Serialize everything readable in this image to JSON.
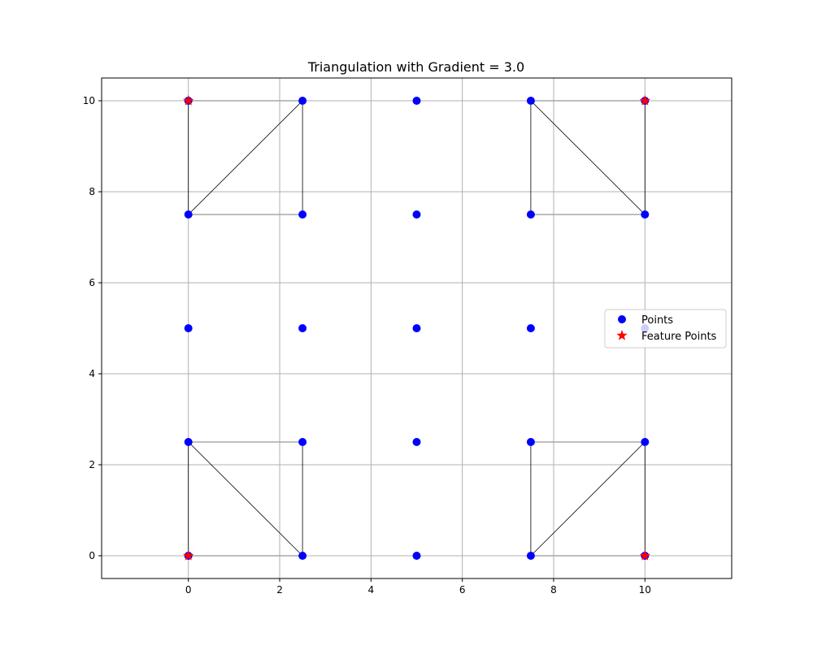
{
  "chart_data": {
    "type": "scatter",
    "title": "Triangulation with Gradient = 3.0",
    "xlabel": "",
    "ylabel": "",
    "xlim": [
      -1.9,
      11.9
    ],
    "ylim": [
      -0.5,
      10.5
    ],
    "xticks": [
      0,
      2,
      4,
      6,
      8,
      10
    ],
    "yticks": [
      0,
      2,
      4,
      6,
      8,
      10
    ],
    "grid": true,
    "legend_position": "center-right",
    "series": [
      {
        "name": "Points",
        "marker": "circle",
        "color": "#0000ff",
        "points": [
          [
            0,
            0
          ],
          [
            2.5,
            0
          ],
          [
            5,
            0
          ],
          [
            7.5,
            0
          ],
          [
            10,
            0
          ],
          [
            0,
            2.5
          ],
          [
            2.5,
            2.5
          ],
          [
            5,
            2.5
          ],
          [
            7.5,
            2.5
          ],
          [
            10,
            2.5
          ],
          [
            0,
            5
          ],
          [
            2.5,
            5
          ],
          [
            5,
            5
          ],
          [
            7.5,
            5
          ],
          [
            10,
            5
          ],
          [
            0,
            7.5
          ],
          [
            2.5,
            7.5
          ],
          [
            5,
            7.5
          ],
          [
            7.5,
            7.5
          ],
          [
            10,
            7.5
          ],
          [
            0,
            10
          ],
          [
            2.5,
            10
          ],
          [
            5,
            10
          ],
          [
            7.5,
            10
          ],
          [
            10,
            10
          ]
        ]
      },
      {
        "name": "Feature Points",
        "marker": "star",
        "color": "#ff0000",
        "points": [
          [
            0,
            0
          ],
          [
            10,
            0
          ],
          [
            0,
            10
          ],
          [
            10,
            10
          ]
        ]
      }
    ],
    "triangles": [
      [
        [
          0,
          10
        ],
        [
          2.5,
          10
        ],
        [
          0,
          7.5
        ]
      ],
      [
        [
          0,
          7.5
        ],
        [
          2.5,
          10
        ],
        [
          2.5,
          7.5
        ]
      ],
      [
        [
          7.5,
          10
        ],
        [
          10,
          10
        ],
        [
          10,
          7.5
        ]
      ],
      [
        [
          7.5,
          10
        ],
        [
          10,
          7.5
        ],
        [
          7.5,
          7.5
        ]
      ],
      [
        [
          0,
          2.5
        ],
        [
          2.5,
          2.5
        ],
        [
          2.5,
          0
        ]
      ],
      [
        [
          0,
          2.5
        ],
        [
          2.5,
          0
        ],
        [
          0,
          0
        ]
      ],
      [
        [
          7.5,
          2.5
        ],
        [
          10,
          2.5
        ],
        [
          7.5,
          0
        ]
      ],
      [
        [
          7.5,
          0
        ],
        [
          10,
          2.5
        ],
        [
          10,
          0
        ]
      ]
    ],
    "colors": {
      "grid": "#b0b0b0",
      "outer_edge": "#a9a9a9",
      "inner_edge": "#000000",
      "axis": "#000000"
    }
  }
}
